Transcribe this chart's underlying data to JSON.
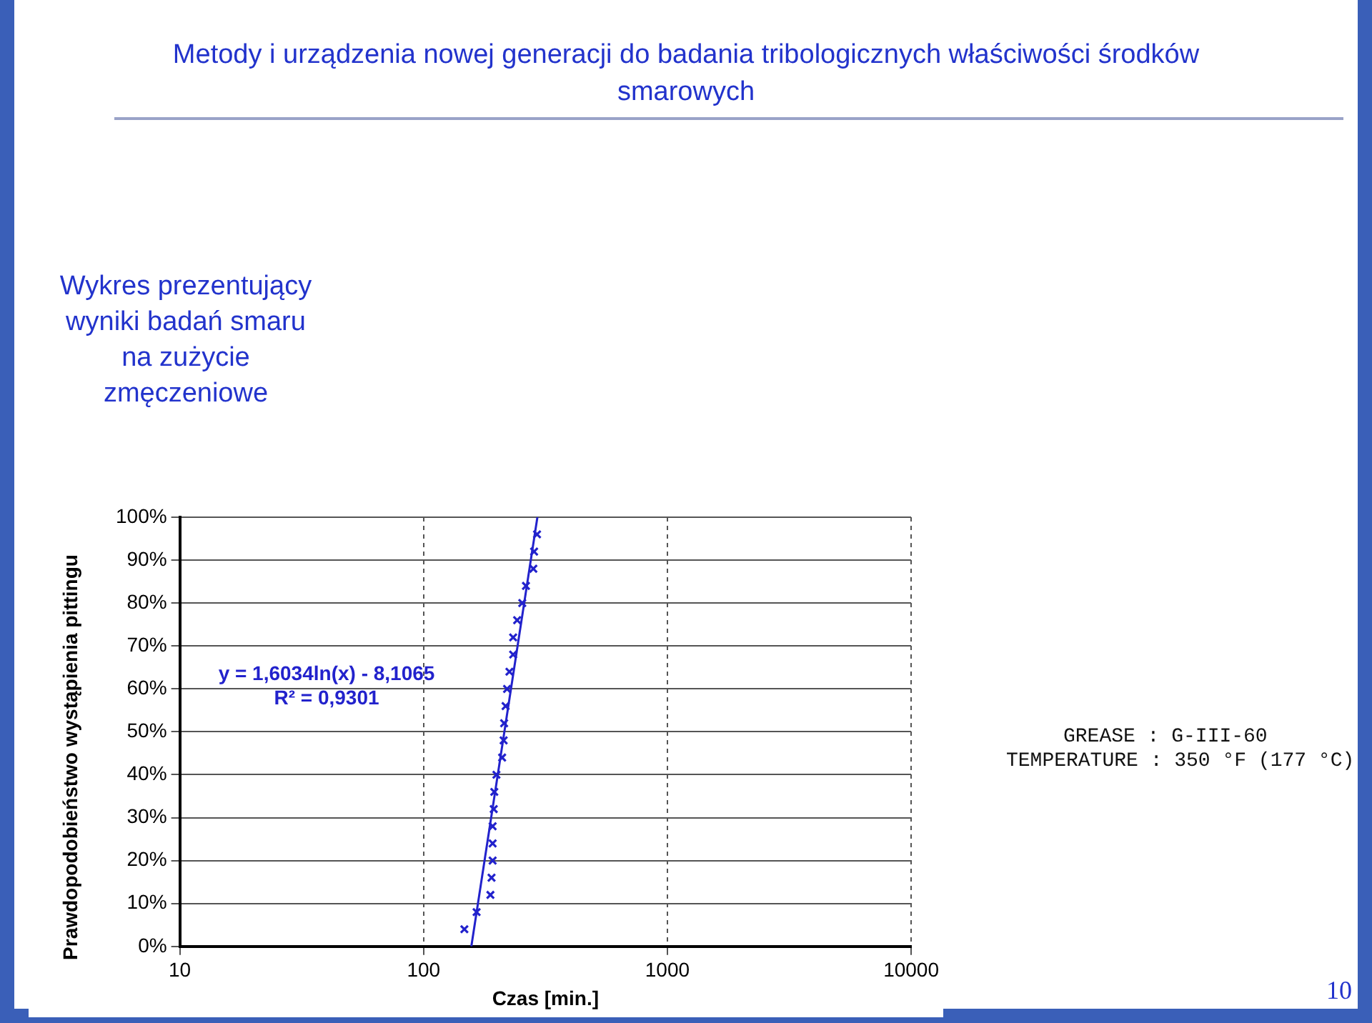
{
  "chart_data": {
    "type": "scatter",
    "title": "Metody i urządzenia nowej generacji do badania tribologicznych właściwości środków smarowych",
    "subtitle": "Wykres prezentujący wyniki badań smaru na zużycie zmęczeniowe",
    "xlabel": "Czas [min.]",
    "ylabel": "Prawdopodobieństwo wystąpienia pittingu",
    "log": "x",
    "xlim": [
      10,
      10000
    ],
    "xticks": [
      10,
      100,
      1000,
      10000
    ],
    "ylim": [
      0,
      100
    ],
    "yticks": [
      {
        "value": 0,
        "label": "0%"
      },
      {
        "value": 10,
        "label": "10%"
      },
      {
        "value": 20,
        "label": "20%"
      },
      {
        "value": 30,
        "label": "30%"
      },
      {
        "value": 40,
        "label": "40%"
      },
      {
        "value": 50,
        "label": "50%"
      },
      {
        "value": 60,
        "label": "60%"
      },
      {
        "value": 70,
        "label": "70%"
      },
      {
        "value": 80,
        "label": "80%"
      },
      {
        "value": 90,
        "label": "90%"
      },
      {
        "value": 100,
        "label": "100%"
      }
    ],
    "grid": true,
    "legend": false,
    "marker": "cross",
    "series": [
      {
        "type": "scatter",
        "color": "#2222cc",
        "x": [
          147,
          165,
          188,
          190,
          192,
          192,
          192,
          194,
          195,
          199,
          210,
          213,
          214,
          217,
          220,
          225,
          233,
          233,
          242,
          254,
          263,
          282,
          284,
          292
        ],
        "values": [
          4,
          8,
          12,
          16,
          20,
          24,
          28,
          32,
          36,
          40,
          44,
          48,
          52,
          56,
          60,
          64,
          68,
          72,
          76,
          80,
          84,
          88,
          92,
          96
        ]
      },
      {
        "type": "line",
        "color": "#2222cc",
        "marker": "none",
        "line_style": "solid",
        "x": [
          157,
          293
        ],
        "values": [
          0,
          100
        ]
      }
    ],
    "annotations": [
      "y = 1,6034ln(x) - 8,1065",
      "R² = 0,9301",
      "GREASE : G-III-60",
      "TEMPERATURE : 350 °F (177 °C)",
      "10"
    ]
  }
}
